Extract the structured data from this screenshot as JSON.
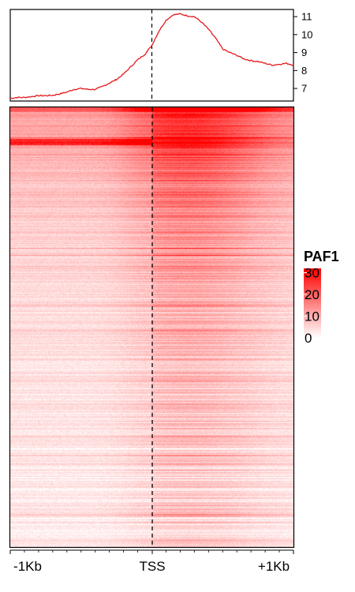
{
  "chart_data": [
    {
      "type": "line",
      "x": [
        -1000,
        -950,
        -900,
        -850,
        -800,
        -750,
        -700,
        -650,
        -600,
        -550,
        -500,
        -450,
        -400,
        -350,
        -300,
        -250,
        -200,
        -150,
        -100,
        -50,
        0,
        50,
        100,
        150,
        200,
        250,
        300,
        350,
        400,
        450,
        500,
        550,
        600,
        650,
        700,
        750,
        800,
        850,
        900,
        950,
        1000
      ],
      "series": [
        {
          "values": [
            6.45,
            6.5,
            6.5,
            6.55,
            6.6,
            6.6,
            6.62,
            6.7,
            6.8,
            6.95,
            7.0,
            6.95,
            6.95,
            7.1,
            7.3,
            7.5,
            7.8,
            8.2,
            8.6,
            8.9,
            9.4,
            10.2,
            10.8,
            11.1,
            11.15,
            11.05,
            11.0,
            10.7,
            10.3,
            9.8,
            9.2,
            9.0,
            8.85,
            8.65,
            8.55,
            8.5,
            8.4,
            8.3,
            8.35,
            8.4,
            8.3
          ],
          "color": "#e41a1c"
        }
      ],
      "ylim": [
        6.3,
        11.4
      ],
      "yticks": [
        7,
        8,
        9,
        10,
        11
      ],
      "xlim": [
        -1000,
        1000
      ],
      "vline_x": 0
    },
    {
      "type": "heatmap",
      "legend_title": "PAF1",
      "legend_ticks": [
        0,
        10,
        20,
        30
      ],
      "value_range": [
        0,
        32
      ],
      "color_low": "#ffffff",
      "color_high": "#ff0000",
      "x_tick_labels": [
        "-1Kb",
        "TSS",
        "+1Kb"
      ],
      "xlim": [
        -1000,
        1000
      ],
      "vline_x": 0
    }
  ]
}
